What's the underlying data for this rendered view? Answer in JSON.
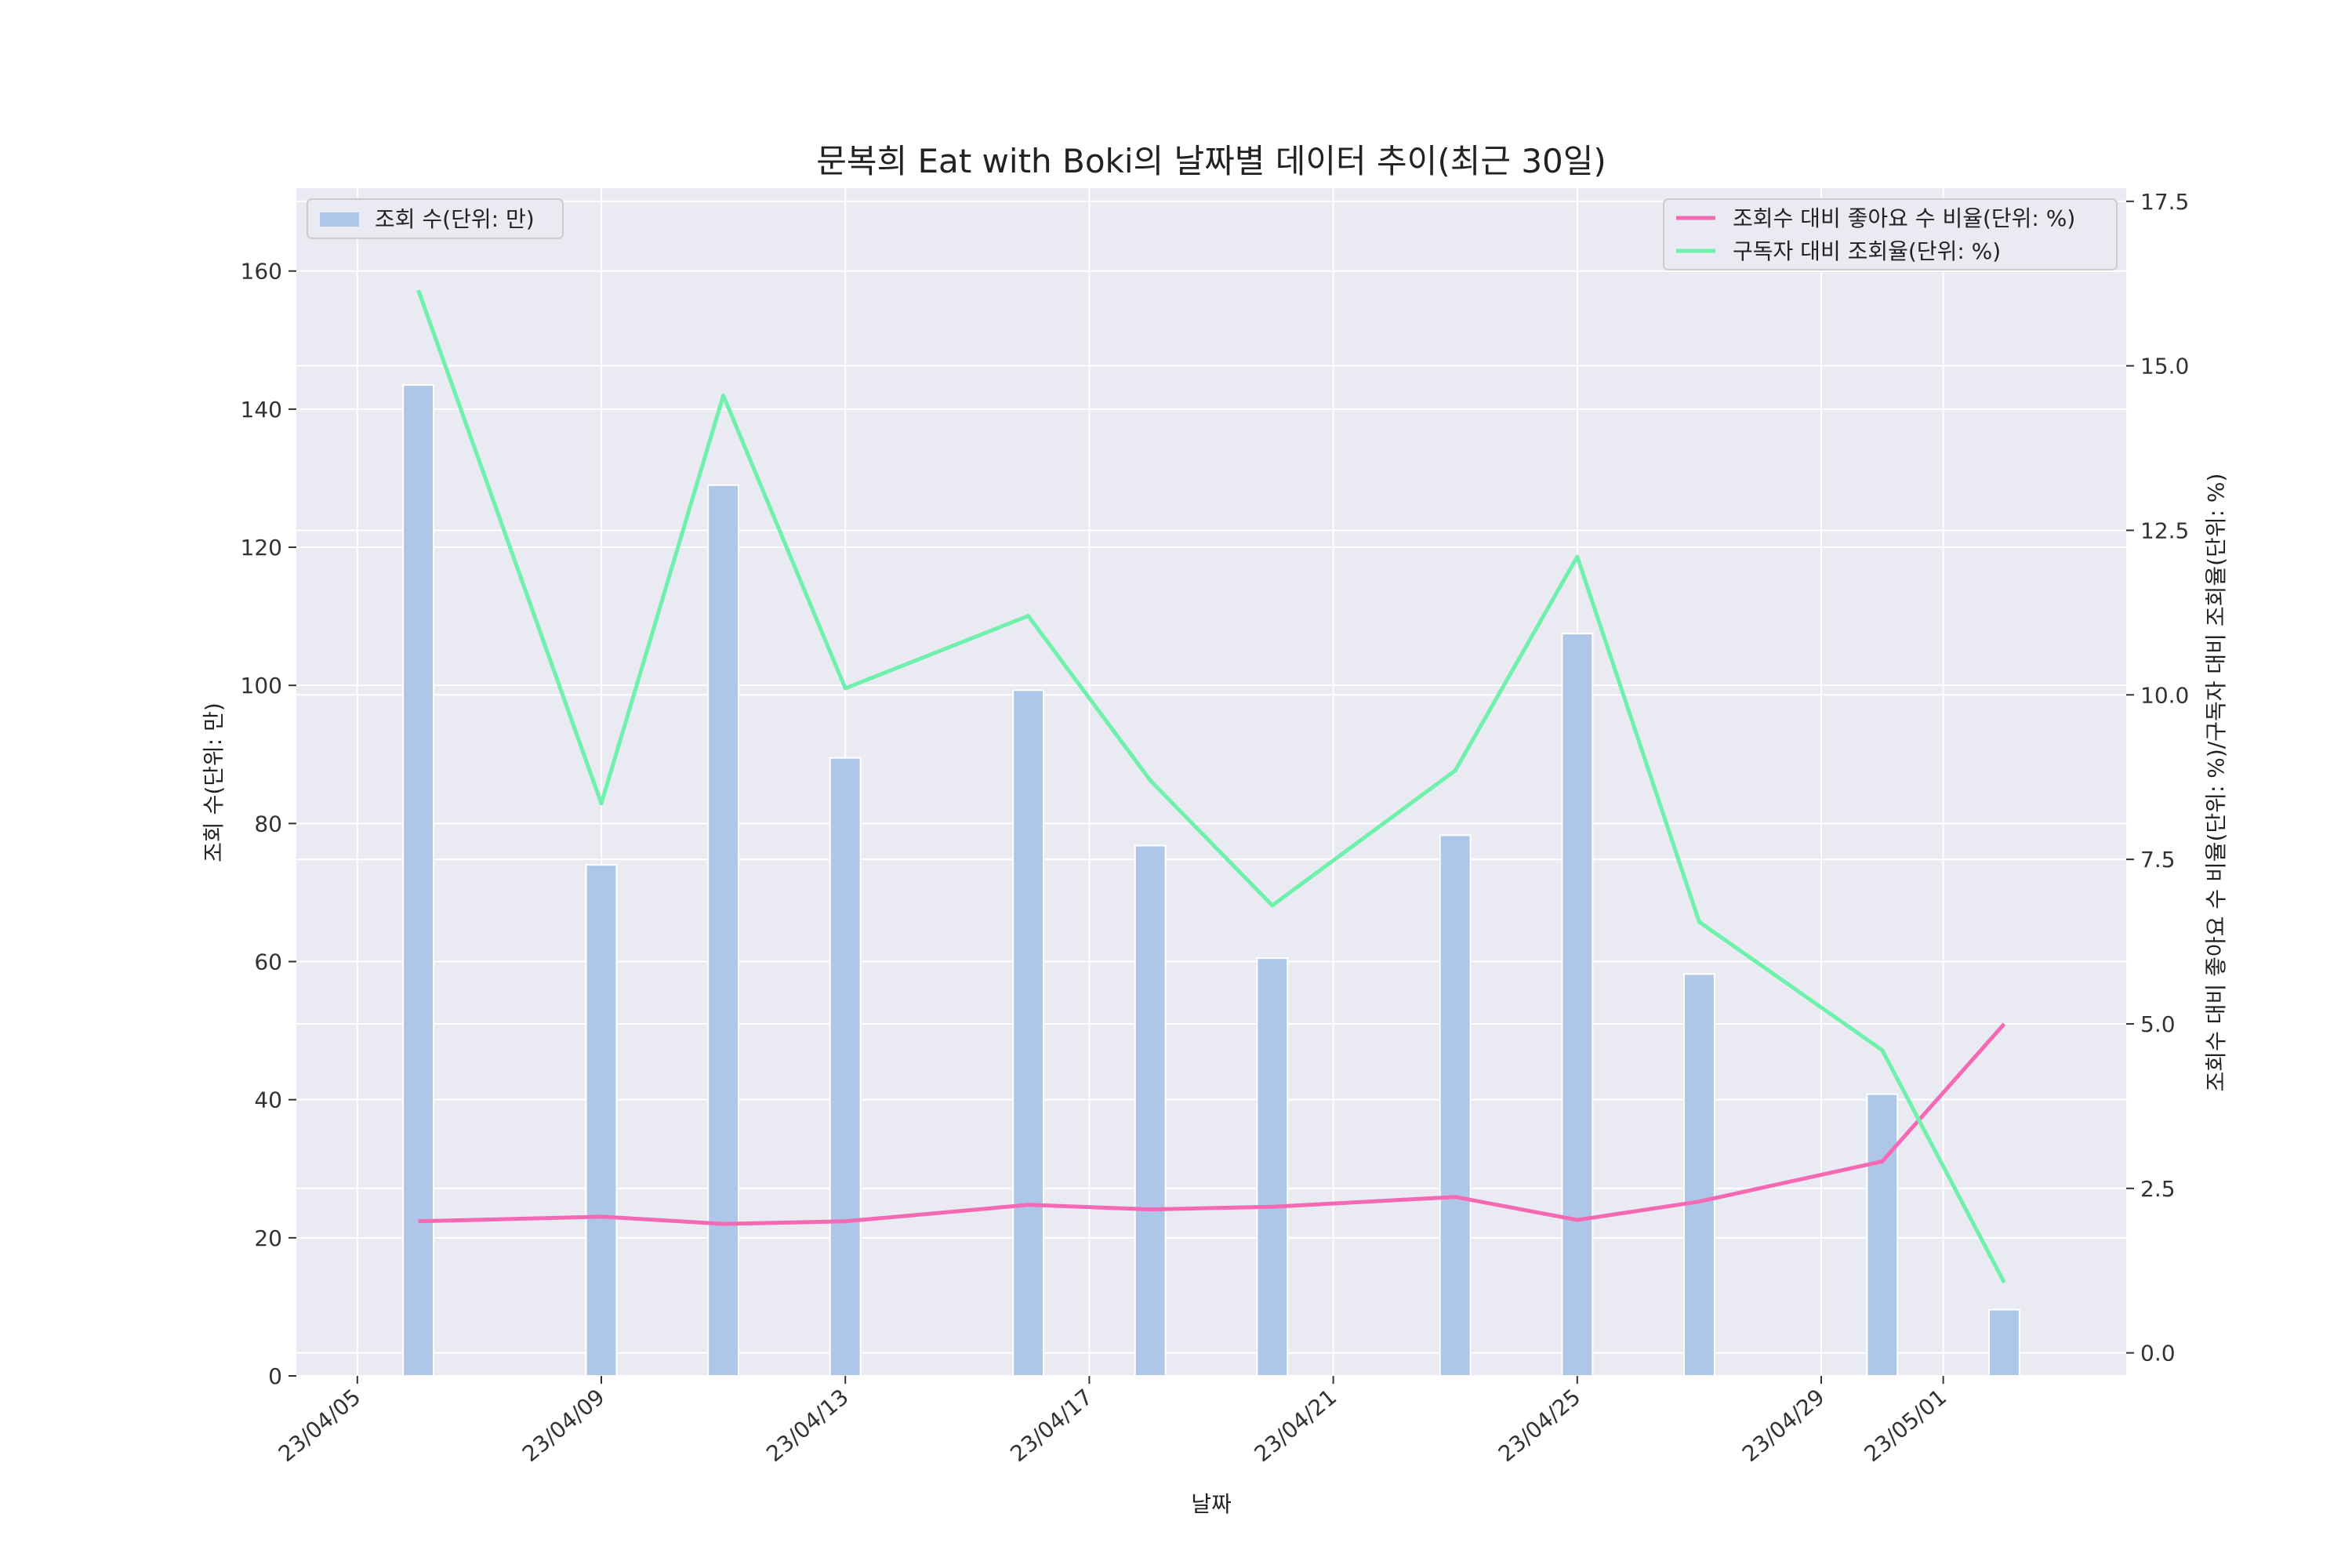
{
  "chart_data": {
    "type": "bar+line",
    "title": "문복희 Eat with Boki의 날짜별 데이터 추이(최근 30일)",
    "xlabel": "날짜",
    "ylabel_left": "조회 수(단위: 만)",
    "ylabel_right": "조회수 대비 좋아요 수 비율(단위: %)/구독자 대비 조회율(단위: %)",
    "x_tick_labels": [
      "23/04/05",
      "23/04/09",
      "23/04/13",
      "23/04/17",
      "23/04/21",
      "23/04/25",
      "23/04/29",
      "23/05/01"
    ],
    "x_ticks_dates": [
      "2023-04-05",
      "2023-04-09",
      "2023-04-13",
      "2023-04-17",
      "2023-04-21",
      "2023-04-25",
      "2023-04-29",
      "2023-05-01"
    ],
    "xlim": [
      "2023-04-04",
      "2023-05-04"
    ],
    "ylim_left": [
      0,
      172
    ],
    "yticks_left": [
      0,
      20,
      40,
      60,
      80,
      100,
      120,
      140,
      160
    ],
    "ylim_right": [
      -0.35,
      17.7
    ],
    "yticks_right": [
      0.0,
      2.5,
      5.0,
      7.5,
      10.0,
      12.5,
      15.0,
      17.5
    ],
    "ytick_right_labels": [
      "0.0",
      "2.5",
      "5.0",
      "7.5",
      "10.0",
      "12.5",
      "15.0",
      "17.5"
    ],
    "dates": [
      "2023-04-06",
      "2023-04-09",
      "2023-04-11",
      "2023-04-13",
      "2023-04-16",
      "2023-04-18",
      "2023-04-20",
      "2023-04-23",
      "2023-04-25",
      "2023-04-27",
      "2023-04-30",
      "2023-05-02"
    ],
    "grid": true,
    "series": [
      {
        "name": "조회 수(단위: 만)",
        "kind": "bar",
        "axis": "left",
        "color": "#aec7e8",
        "values": [
          143.5,
          74,
          129,
          89.5,
          99.3,
          76.8,
          60.5,
          78.3,
          107.5,
          58.2,
          40.8,
          9.6
        ]
      },
      {
        "name": "조회수 대비 좋아요 수 비율(단위: %)",
        "kind": "line",
        "axis": "right",
        "color": "#f468b4",
        "values": [
          2.0,
          2.07,
          1.96,
          2.0,
          2.25,
          2.18,
          2.22,
          2.37,
          2.02,
          2.3,
          2.91,
          5.0
        ]
      },
      {
        "name": "구독자 대비 조회율(단위: %)",
        "kind": "line",
        "axis": "right",
        "color": "#6ff0ad",
        "values": [
          16.15,
          8.35,
          14.55,
          10.1,
          11.2,
          8.7,
          6.8,
          8.85,
          12.1,
          6.55,
          4.6,
          1.07
        ]
      }
    ],
    "legend_left_position": "upper-left",
    "legend_right_position": "upper-right"
  }
}
